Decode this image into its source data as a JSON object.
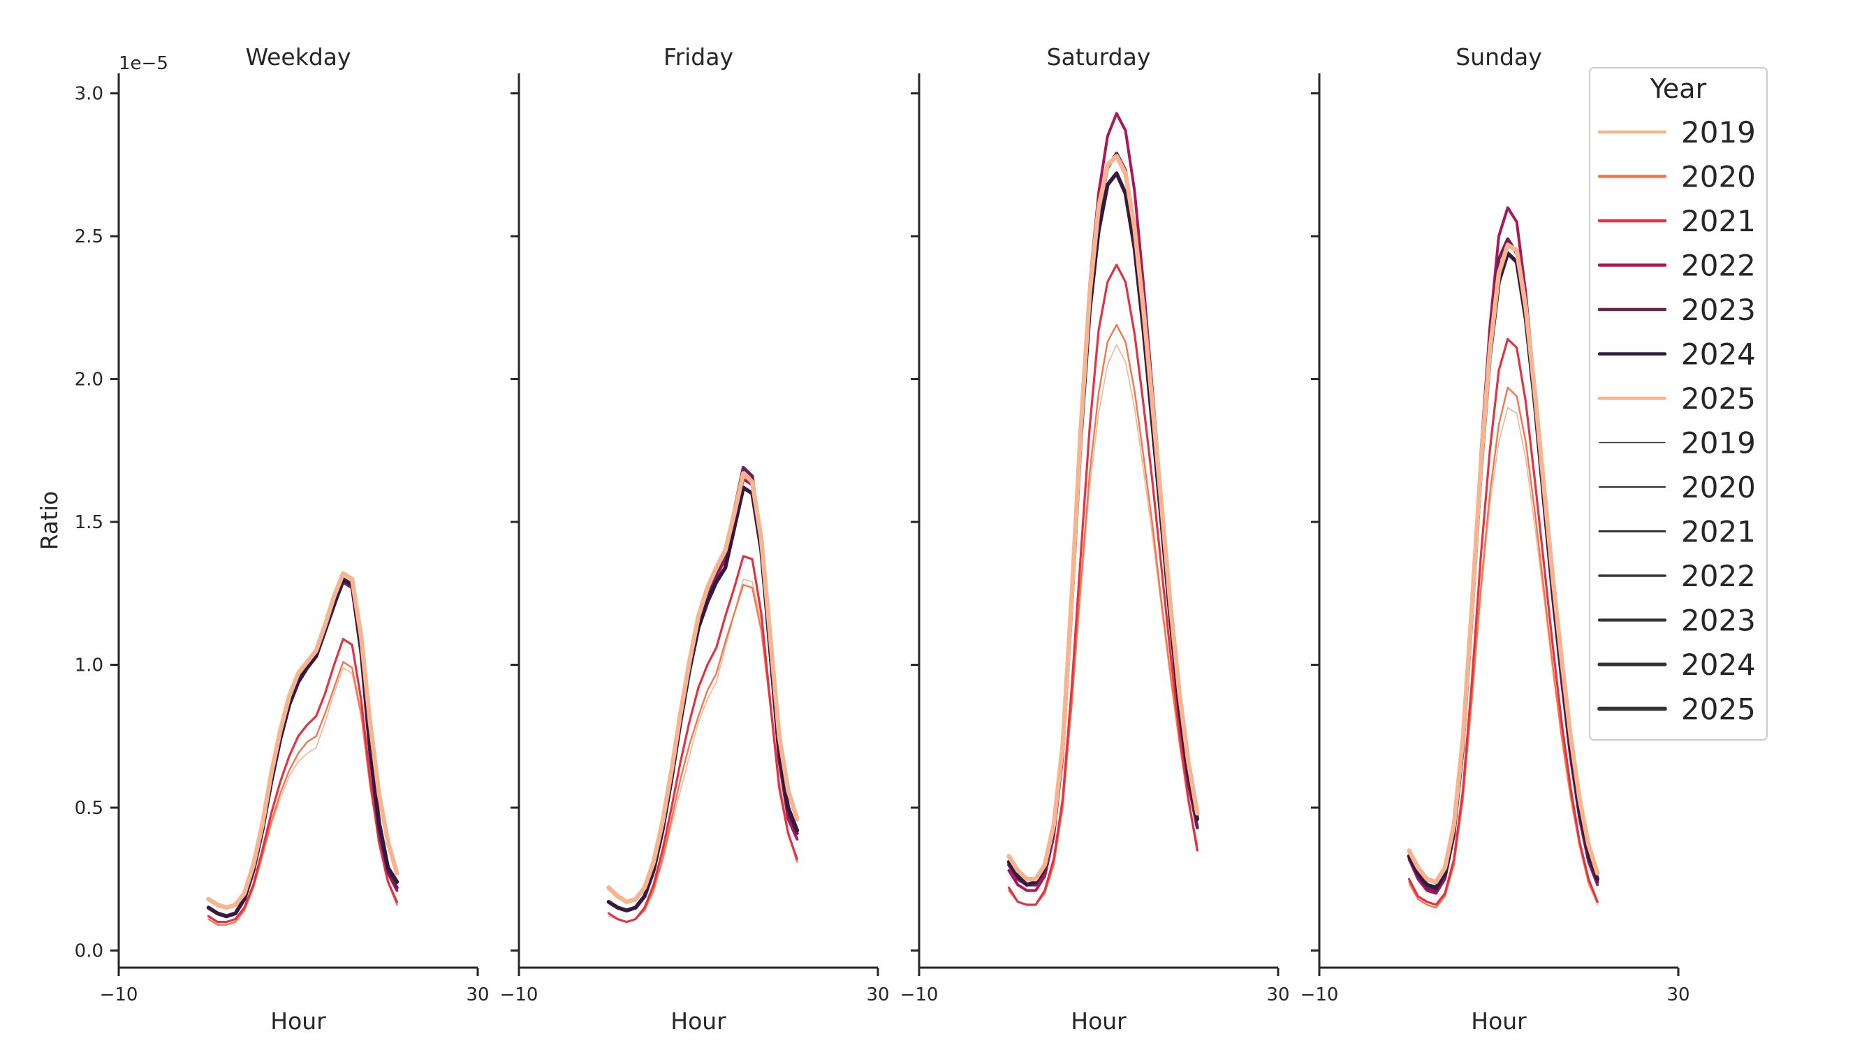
{
  "chart_data": {
    "type": "line",
    "ylabel": "Ratio",
    "xlabel": "Hour",
    "y_scale_label": "1e−5",
    "ylim": [
      -0.06,
      3.07
    ],
    "xlim": [
      -10,
      30
    ],
    "y_ticks": [
      0.0,
      0.5,
      1.0,
      1.5,
      2.0,
      2.5,
      3.0
    ],
    "y_tick_labels": [
      "0.0",
      "0.5",
      "1.0",
      "1.5",
      "2.0",
      "2.5",
      "3.0"
    ],
    "x_ticks": [
      -10,
      30
    ],
    "x_tick_labels": [
      "−10",
      "30"
    ],
    "x": [
      0,
      1,
      2,
      3,
      4,
      5,
      6,
      7,
      8,
      9,
      10,
      11,
      12,
      13,
      14,
      15,
      16,
      17,
      18,
      19,
      20,
      21,
      22,
      23
    ],
    "legend": {
      "title": "Year",
      "hue_entries": [
        {
          "label": "2019",
          "color": "#f6b48f"
        },
        {
          "label": "2020",
          "color": "#f37651"
        },
        {
          "label": "2021",
          "color": "#e13342"
        },
        {
          "label": "2022",
          "color": "#ad1759"
        },
        {
          "label": "2023",
          "color": "#701f57"
        },
        {
          "label": "2024",
          "color": "#35193e"
        },
        {
          "label": "2025",
          "color": "#f6b48f"
        }
      ],
      "size_entries": [
        {
          "label": "2019",
          "color": "#333333"
        },
        {
          "label": "2020",
          "color": "#333333"
        },
        {
          "label": "2021",
          "color": "#333333"
        },
        {
          "label": "2022",
          "color": "#333333"
        },
        {
          "label": "2023",
          "color": "#333333"
        },
        {
          "label": "2024",
          "color": "#333333"
        },
        {
          "label": "2025",
          "color": "#333333"
        }
      ]
    },
    "panels": [
      {
        "title": "Weekday",
        "series": [
          {
            "name": "2019",
            "color": "#f6b48f",
            "values": [
              0.11,
              0.09,
              0.09,
              0.1,
              0.14,
              0.22,
              0.33,
              0.44,
              0.53,
              0.61,
              0.66,
              0.69,
              0.71,
              0.8,
              0.9,
              0.99,
              0.97,
              0.82,
              0.58,
              0.39,
              0.25,
              0.16,
              null,
              null
            ]
          },
          {
            "name": "2020",
            "color": "#f37651",
            "values": [
              0.11,
              0.09,
              0.09,
              0.1,
              0.14,
              0.22,
              0.33,
              0.45,
              0.55,
              0.63,
              0.69,
              0.73,
              0.75,
              0.83,
              0.92,
              1.01,
              0.99,
              0.83,
              0.58,
              0.38,
              0.24,
              0.16,
              null,
              null
            ]
          },
          {
            "name": "2021",
            "color": "#e13342",
            "values": [
              0.12,
              0.1,
              0.1,
              0.11,
              0.15,
              0.23,
              0.35,
              0.48,
              0.59,
              0.68,
              0.75,
              0.79,
              0.82,
              0.9,
              1.0,
              1.09,
              1.07,
              0.88,
              0.6,
              0.38,
              0.24,
              0.17,
              null,
              null
            ]
          },
          {
            "name": "2022",
            "color": "#ad1759",
            "values": [
              0.15,
              0.13,
              0.12,
              0.13,
              0.18,
              0.28,
              0.42,
              0.59,
              0.74,
              0.86,
              0.95,
              1.0,
              1.04,
              1.13,
              1.22,
              1.3,
              1.28,
              1.05,
              0.69,
              0.42,
              0.27,
              0.21,
              null,
              null
            ]
          },
          {
            "name": "2023",
            "color": "#701f57",
            "values": [
              0.15,
              0.13,
              0.12,
              0.13,
              0.18,
              0.28,
              0.42,
              0.59,
              0.74,
              0.86,
              0.94,
              0.99,
              1.03,
              1.12,
              1.21,
              1.29,
              1.27,
              1.04,
              0.69,
              0.42,
              0.28,
              0.22,
              null,
              null
            ]
          },
          {
            "name": "2024",
            "color": "#35193e",
            "values": [
              0.15,
              0.13,
              0.12,
              0.13,
              0.18,
              0.28,
              0.42,
              0.59,
              0.74,
              0.86,
              0.94,
              0.99,
              1.03,
              1.12,
              1.21,
              1.3,
              1.28,
              1.06,
              0.72,
              0.45,
              0.29,
              0.24,
              null,
              null
            ]
          },
          {
            "name": "2025",
            "color": "#f6b48f",
            "values": [
              0.18,
              0.16,
              0.15,
              0.16,
              0.2,
              0.3,
              0.44,
              0.62,
              0.77,
              0.89,
              0.97,
              1.01,
              1.05,
              1.14,
              1.24,
              1.32,
              1.3,
              1.1,
              0.8,
              0.55,
              0.38,
              0.27,
              null,
              null
            ]
          }
        ]
      },
      {
        "title": "Friday",
        "series": [
          {
            "name": "2019",
            "color": "#f6b48f",
            "values": [
              0.12,
              0.11,
              0.1,
              0.11,
              0.14,
              0.21,
              0.31,
              0.44,
              0.56,
              0.68,
              0.8,
              0.88,
              0.94,
              1.06,
              1.18,
              1.3,
              1.29,
              1.15,
              0.89,
              0.6,
              0.42,
              0.31,
              null,
              null
            ]
          },
          {
            "name": "2020",
            "color": "#f37651",
            "values": [
              0.13,
              0.11,
              0.1,
              0.11,
              0.14,
              0.21,
              0.32,
              0.46,
              0.6,
              0.72,
              0.82,
              0.91,
              0.97,
              1.08,
              1.18,
              1.28,
              1.27,
              1.12,
              0.86,
              0.58,
              0.41,
              0.31,
              null,
              null
            ]
          },
          {
            "name": "2021",
            "color": "#e13342",
            "values": [
              0.13,
              0.11,
              0.1,
              0.11,
              0.15,
              0.23,
              0.35,
              0.5,
              0.66,
              0.8,
              0.92,
              1.0,
              1.06,
              1.17,
              1.27,
              1.38,
              1.37,
              1.18,
              0.87,
              0.57,
              0.41,
              0.32,
              null,
              null
            ]
          },
          {
            "name": "2022",
            "color": "#ad1759",
            "values": [
              0.17,
              0.15,
              0.14,
              0.15,
              0.19,
              0.28,
              0.42,
              0.6,
              0.8,
              0.98,
              1.13,
              1.23,
              1.31,
              1.37,
              1.51,
              1.65,
              1.63,
              1.41,
              1.04,
              0.66,
              0.46,
              0.39,
              null,
              null
            ]
          },
          {
            "name": "2023",
            "color": "#701f57",
            "values": [
              0.17,
              0.15,
              0.14,
              0.15,
              0.19,
              0.28,
              0.42,
              0.6,
              0.8,
              0.98,
              1.14,
              1.24,
              1.32,
              1.39,
              1.54,
              1.69,
              1.66,
              1.42,
              1.04,
              0.67,
              0.48,
              0.41,
              null,
              null
            ]
          },
          {
            "name": "2024",
            "color": "#35193e",
            "values": [
              0.17,
              0.15,
              0.14,
              0.15,
              0.19,
              0.28,
              0.42,
              0.6,
              0.8,
              0.98,
              1.13,
              1.22,
              1.29,
              1.34,
              1.48,
              1.62,
              1.6,
              1.4,
              1.05,
              0.7,
              0.5,
              0.42,
              null,
              null
            ]
          },
          {
            "name": "2025",
            "color": "#f6b48f",
            "values": [
              0.22,
              0.19,
              0.17,
              0.18,
              0.22,
              0.31,
              0.45,
              0.63,
              0.83,
              1.01,
              1.17,
              1.27,
              1.34,
              1.4,
              1.53,
              1.67,
              1.64,
              1.44,
              1.1,
              0.75,
              0.56,
              0.46,
              null,
              null
            ]
          }
        ]
      },
      {
        "title": "Saturday",
        "series": [
          {
            "name": "2019",
            "color": "#f6b48f",
            "values": [
              0.21,
              0.17,
              0.16,
              0.16,
              0.2,
              0.3,
              0.5,
              0.85,
              1.25,
              1.62,
              1.88,
              2.05,
              2.12,
              2.06,
              1.9,
              1.68,
              1.45,
              1.2,
              0.95,
              0.72,
              0.52,
              0.37,
              null,
              null
            ]
          },
          {
            "name": "2020",
            "color": "#f37651",
            "values": [
              0.21,
              0.17,
              0.16,
              0.16,
              0.2,
              0.3,
              0.5,
              0.86,
              1.28,
              1.67,
              1.95,
              2.13,
              2.19,
              2.13,
              1.96,
              1.73,
              1.49,
              1.22,
              0.97,
              0.73,
              0.52,
              0.37,
              null,
              null
            ]
          },
          {
            "name": "2021",
            "color": "#e13342",
            "values": [
              0.22,
              0.17,
              0.16,
              0.16,
              0.21,
              0.32,
              0.53,
              0.92,
              1.38,
              1.83,
              2.17,
              2.34,
              2.4,
              2.34,
              2.16,
              1.91,
              1.64,
              1.34,
              1.04,
              0.76,
              0.53,
              0.35,
              null,
              null
            ]
          },
          {
            "name": "2022",
            "color": "#ad1759",
            "values": [
              0.28,
              0.23,
              0.21,
              0.21,
              0.26,
              0.4,
              0.68,
              1.2,
              1.82,
              2.33,
              2.65,
              2.85,
              2.93,
              2.87,
              2.66,
              2.33,
              1.96,
              1.58,
              1.2,
              0.85,
              0.6,
              0.43,
              null,
              null
            ]
          },
          {
            "name": "2023",
            "color": "#701f57",
            "values": [
              0.3,
              0.25,
              0.23,
              0.23,
              0.28,
              0.42,
              0.7,
              1.22,
              1.8,
              2.27,
              2.58,
              2.74,
              2.79,
              2.73,
              2.53,
              2.22,
              1.87,
              1.51,
              1.15,
              0.83,
              0.59,
              0.43,
              null,
              null
            ]
          },
          {
            "name": "2024",
            "color": "#35193e",
            "values": [
              0.31,
              0.26,
              0.23,
              0.24,
              0.29,
              0.43,
              0.71,
              1.22,
              1.79,
              2.24,
              2.52,
              2.68,
              2.72,
              2.65,
              2.46,
              2.17,
              1.84,
              1.5,
              1.16,
              0.85,
              0.62,
              0.46,
              null,
              null
            ]
          },
          {
            "name": "2025",
            "color": "#f6b48f",
            "values": [
              0.33,
              0.28,
              0.25,
              0.25,
              0.3,
              0.44,
              0.72,
              1.24,
              1.82,
              2.3,
              2.6,
              2.75,
              2.78,
              2.72,
              2.53,
              2.24,
              1.91,
              1.56,
              1.21,
              0.9,
              0.66,
              0.48,
              null,
              null
            ]
          }
        ]
      },
      {
        "title": "Sunday",
        "series": [
          {
            "name": "2019",
            "color": "#f6b48f",
            "values": [
              0.23,
              0.18,
              0.16,
              0.15,
              0.19,
              0.3,
              0.52,
              0.86,
              1.24,
              1.56,
              1.78,
              1.9,
              1.88,
              1.72,
              1.49,
              1.24,
              0.98,
              0.74,
              0.53,
              0.36,
              0.23,
              0.16,
              null,
              null
            ]
          },
          {
            "name": "2020",
            "color": "#f37651",
            "values": [
              0.24,
              0.18,
              0.16,
              0.15,
              0.19,
              0.3,
              0.53,
              0.88,
              1.27,
              1.6,
              1.84,
              1.97,
              1.94,
              1.78,
              1.54,
              1.27,
              1.0,
              0.75,
              0.54,
              0.37,
              0.24,
              0.17,
              null,
              null
            ]
          },
          {
            "name": "2021",
            "color": "#e13342",
            "values": [
              0.25,
              0.19,
              0.17,
              0.16,
              0.2,
              0.32,
              0.56,
              0.94,
              1.38,
              1.75,
              2.03,
              2.14,
              2.11,
              1.92,
              1.65,
              1.36,
              1.07,
              0.8,
              0.57,
              0.38,
              0.25,
              0.17,
              null,
              null
            ]
          },
          {
            "name": "2022",
            "color": "#ad1759",
            "values": [
              0.32,
              0.25,
              0.21,
              0.2,
              0.25,
              0.4,
              0.7,
              1.18,
              1.74,
              2.18,
              2.5,
              2.6,
              2.55,
              2.3,
              1.97,
              1.61,
              1.27,
              0.96,
              0.68,
              0.46,
              0.31,
              0.23,
              null,
              null
            ]
          },
          {
            "name": "2023",
            "color": "#701f57",
            "values": [
              0.33,
              0.26,
              0.22,
              0.21,
              0.26,
              0.41,
              0.71,
              1.19,
              1.72,
              2.14,
              2.42,
              2.49,
              2.44,
              2.22,
              1.91,
              1.57,
              1.24,
              0.95,
              0.68,
              0.47,
              0.32,
              0.24,
              null,
              null
            ]
          },
          {
            "name": "2024",
            "color": "#35193e",
            "values": [
              0.33,
              0.27,
              0.23,
              0.22,
              0.27,
              0.42,
              0.72,
              1.18,
              1.68,
              2.08,
              2.34,
              2.44,
              2.41,
              2.21,
              1.92,
              1.59,
              1.27,
              0.98,
              0.71,
              0.49,
              0.34,
              0.25,
              null,
              null
            ]
          },
          {
            "name": "2025",
            "color": "#f6b48f",
            "values": [
              0.35,
              0.29,
              0.25,
              0.24,
              0.29,
              0.44,
              0.74,
              1.2,
              1.7,
              2.1,
              2.37,
              2.47,
              2.45,
              2.25,
              1.96,
              1.63,
              1.31,
              1.02,
              0.75,
              0.53,
              0.37,
              0.27,
              null,
              null
            ]
          }
        ]
      }
    ]
  }
}
